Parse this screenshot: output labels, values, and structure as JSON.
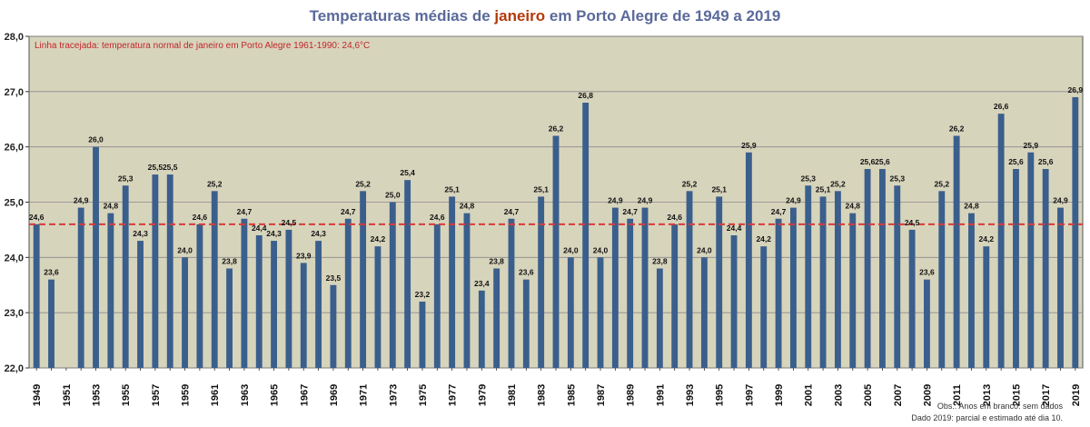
{
  "title": {
    "prefix": "Temperaturas médias de ",
    "highlight": "janeiro",
    "suffix": " em Porto Alegre de 1949 a  2019"
  },
  "reference_note": "Linha tracejada: temperatura  normal de janeiro em Porto  Alegre 1961-1990: 24,6°C",
  "footnotes": {
    "line1": "Obs.: Anos em branco: sem dados",
    "line2": "Dado 2019:  parcial e estimado até dia 10."
  },
  "colors": {
    "plot_background": "#d7d4bc",
    "bar": "#3a5f8c",
    "reference_line": "#d83a3a",
    "grid": "#8a8a8a"
  },
  "chart_data": {
    "type": "bar",
    "categories": [
      "1949",
      "1950",
      "1951",
      "1952",
      "1953",
      "1954",
      "1955",
      "1956",
      "1957",
      "1958",
      "1959",
      "1960",
      "1961",
      "1962",
      "1963",
      "1964",
      "1965",
      "1966",
      "1967",
      "1968",
      "1969",
      "1970",
      "1971",
      "1972",
      "1973",
      "1974",
      "1975",
      "1976",
      "1977",
      "1978",
      "1979",
      "1980",
      "1981",
      "1982",
      "1983",
      "1984",
      "1985",
      "1986",
      "1987",
      "1988",
      "1989",
      "1990",
      "1991",
      "1992",
      "1993",
      "1994",
      "1995",
      "1996",
      "1997",
      "1998",
      "1999",
      "2000",
      "2001",
      "2002",
      "2003",
      "2004",
      "2005",
      "2006",
      "2007",
      "2008",
      "2009",
      "2010",
      "2011",
      "2012",
      "2013",
      "2014",
      "2015",
      "2016",
      "2017",
      "2018",
      "2019"
    ],
    "x_tick_labels": [
      "1949",
      "1951",
      "1953",
      "1955",
      "1957",
      "1959",
      "1961",
      "1963",
      "1965",
      "1967",
      "1969",
      "1971",
      "1973",
      "1975",
      "1977",
      "1979",
      "1981",
      "1983",
      "1985",
      "1987",
      "1989",
      "1991",
      "1993",
      "1995",
      "1997",
      "1999",
      "2001",
      "2003",
      "2005",
      "2007",
      "2009",
      "2011",
      "2013",
      "2015",
      "2017",
      "2019"
    ],
    "values": [
      24.6,
      23.6,
      null,
      24.9,
      26.0,
      24.8,
      25.3,
      24.3,
      25.5,
      25.5,
      24.0,
      24.6,
      25.2,
      23.8,
      24.7,
      24.4,
      24.3,
      24.5,
      23.9,
      24.3,
      23.5,
      24.7,
      25.2,
      24.2,
      25.0,
      25.4,
      23.2,
      24.6,
      25.1,
      24.8,
      23.4,
      23.8,
      24.7,
      23.6,
      25.1,
      26.2,
      24.0,
      26.8,
      24.0,
      24.9,
      24.7,
      24.9,
      23.8,
      24.6,
      25.2,
      24.0,
      25.1,
      24.4,
      25.9,
      24.2,
      24.7,
      24.9,
      25.3,
      25.1,
      25.2,
      24.8,
      25.6,
      25.6,
      25.3,
      24.5,
      23.6,
      25.2,
      26.2,
      24.8,
      24.2,
      26.6,
      25.6,
      25.9,
      25.6,
      24.9,
      26.9
    ],
    "data_labels": [
      "24,6",
      "23,6",
      "",
      "24,9",
      "26,0",
      "24,8",
      "25,3",
      "24,3",
      "25,5",
      "25,5",
      "24,0",
      "24,6",
      "25,2",
      "23,8",
      "24,7",
      "24,4",
      "24,3",
      "24,5",
      "23,9",
      "24,3",
      "23,5",
      "24,7",
      "25,2",
      "24,2",
      "25,0",
      "25,4",
      "23,2",
      "24,6",
      "25,1",
      "24,8",
      "23,4",
      "23,8",
      "24,7",
      "23,6",
      "25,1",
      "26,2",
      "24,0",
      "26,8",
      "24,0",
      "24,9",
      "24,7",
      "24,9",
      "23,8",
      "24,6",
      "25,2",
      "24,0",
      "25,1",
      "24,4",
      "25,9",
      "24,2",
      "24,7",
      "24,9",
      "25,3",
      "25,1",
      "25,2",
      "24,8",
      "25,6",
      "25,6",
      "25,3",
      "24,5",
      "23,6",
      "25,2",
      "26,2",
      "24,8",
      "24,2",
      "26,6",
      "25,6",
      "25,9",
      "25,6",
      "24,9",
      "26,9"
    ],
    "y_ticks": [
      22.0,
      23.0,
      24.0,
      25.0,
      26.0,
      27.0,
      28.0
    ],
    "y_tick_labels": [
      "22,0",
      "23,0",
      "24,0",
      "25,0",
      "26,0",
      "27,0",
      "28,0"
    ],
    "ylim": [
      22.0,
      28.0
    ],
    "reference_value": 24.6,
    "grid": "horizontal",
    "legend": "none"
  }
}
